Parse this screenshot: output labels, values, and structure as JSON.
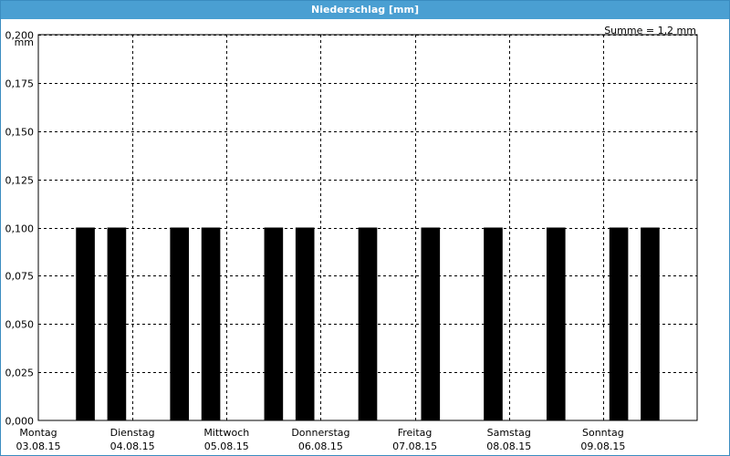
{
  "window": {
    "title": "Niederschlag [mm]"
  },
  "summary": "Summe = 1,2 mm",
  "chart_data": {
    "type": "bar",
    "title": "Niederschlag [mm]",
    "ylabel": "mm",
    "ylim": [
      0,
      0.2
    ],
    "yticks": [
      "0,000",
      "0,025",
      "0,050",
      "0,075",
      "0,100",
      "0,125",
      "0,150",
      "0,175",
      "0,200"
    ],
    "grid": true,
    "xlim": [
      0,
      7
    ],
    "days": [
      {
        "weekday": "Montag",
        "date": "03.08.15"
      },
      {
        "weekday": "Dienstag",
        "date": "04.08.15"
      },
      {
        "weekday": "Mittwoch",
        "date": "05.08.15"
      },
      {
        "weekday": "Donnerstag",
        "date": "06.08.15"
      },
      {
        "weekday": "Freitag",
        "date": "07.08.15"
      },
      {
        "weekday": "Samstag",
        "date": "08.08.15"
      },
      {
        "weekday": "Sonntag",
        "date": "09.08.15"
      }
    ],
    "bar_width_days": 0.2,
    "bars": [
      {
        "x": 0.4,
        "value": 0.1
      },
      {
        "x": 0.733,
        "value": 0.1
      },
      {
        "x": 1.4,
        "value": 0.1
      },
      {
        "x": 1.733,
        "value": 0.1
      },
      {
        "x": 2.4,
        "value": 0.1
      },
      {
        "x": 2.733,
        "value": 0.1
      },
      {
        "x": 3.4,
        "value": 0.1
      },
      {
        "x": 4.067,
        "value": 0.1
      },
      {
        "x": 4.733,
        "value": 0.1
      },
      {
        "x": 5.4,
        "value": 0.1
      },
      {
        "x": 6.067,
        "value": 0.1
      },
      {
        "x": 6.4,
        "value": 0.1
      }
    ]
  }
}
